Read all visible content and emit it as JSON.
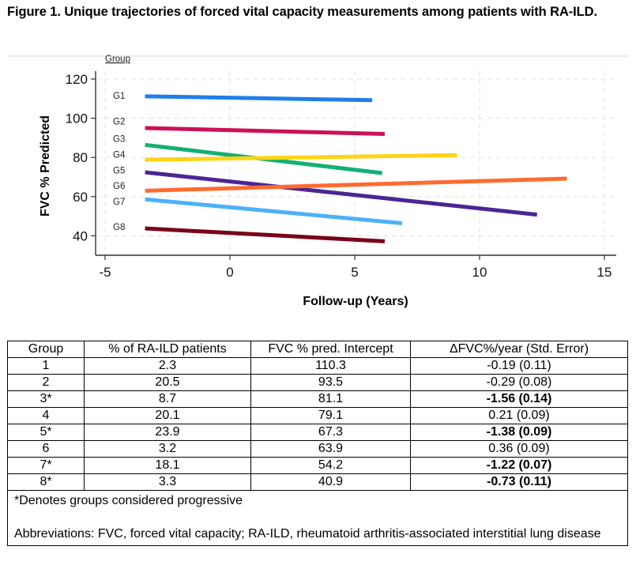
{
  "figure": {
    "title": "Figure 1. Unique trajectories of forced vital capacity measurements among patients with RA-ILD."
  },
  "chart_data": {
    "type": "line",
    "title": "",
    "xlabel": "Follow-up (Years)",
    "ylabel": "FVC % Predicted",
    "legend_title": "Group",
    "xlim": [
      -5.5,
      15.3
    ],
    "ylim": [
      30.5,
      123
    ],
    "xticks": [
      -5,
      0,
      5,
      10,
      15
    ],
    "yticks": [
      40,
      60,
      80,
      100,
      120
    ],
    "grid": true,
    "legend_placement": "inline-left",
    "series": [
      {
        "name": "G1",
        "color": "#1f7fe8",
        "x": [
          -3.4,
          5.7
        ],
        "y": [
          111.2,
          109.2
        ]
      },
      {
        "name": "G2",
        "color": "#cc1157",
        "x": [
          -3.4,
          6.2
        ],
        "y": [
          95.0,
          92.0
        ]
      },
      {
        "name": "G3",
        "color": "#13b073",
        "x": [
          -3.4,
          6.1
        ],
        "y": [
          86.4,
          72.0
        ]
      },
      {
        "name": "G4",
        "color": "#ffd316",
        "x": [
          -3.4,
          9.1
        ],
        "y": [
          78.8,
          81.2
        ]
      },
      {
        "name": "G5",
        "color": "#4b2594",
        "x": [
          -3.4,
          12.3
        ],
        "y": [
          72.4,
          50.8
        ]
      },
      {
        "name": "G6",
        "color": "#ff6a2f",
        "x": [
          -3.4,
          13.5
        ],
        "y": [
          63.0,
          69.2
        ]
      },
      {
        "name": "G7",
        "color": "#4cb1f7",
        "x": [
          -3.4,
          6.9
        ],
        "y": [
          58.6,
          46.4
        ]
      },
      {
        "name": "G8",
        "color": "#7a0018",
        "x": [
          -3.4,
          6.2
        ],
        "y": [
          43.8,
          37.2
        ]
      }
    ],
    "label_positions_y": [
      111.5,
      98.5,
      89.5,
      81.5,
      73.5,
      65.5,
      57.5,
      44.5
    ]
  },
  "table": {
    "headers": [
      "Group",
      "% of RA-ILD patients",
      "FVC % pred. Intercept",
      "ΔFVC%/year (Std. Error)"
    ],
    "rows": [
      {
        "group": "1",
        "pct": "2.3",
        "intercept": "110.3",
        "slope": "-0.19 (0.11)",
        "bold": false
      },
      {
        "group": "2",
        "pct": "20.5",
        "intercept": "93.5",
        "slope": "-0.29 (0.08)",
        "bold": false
      },
      {
        "group": "3*",
        "pct": "8.7",
        "intercept": "81.1",
        "slope": "-1.56 (0.14)",
        "bold": true
      },
      {
        "group": "4",
        "pct": "20.1",
        "intercept": "79.1",
        "slope": "0.21 (0.09)",
        "bold": false
      },
      {
        "group": "5*",
        "pct": "23.9",
        "intercept": "67.3",
        "slope": "-1.38 (0.09)",
        "bold": true
      },
      {
        "group": "6",
        "pct": "3.2",
        "intercept": "63.9",
        "slope": "0.36 (0.09)",
        "bold": false
      },
      {
        "group": "7*",
        "pct": "18.1",
        "intercept": "54.2",
        "slope": "-1.22 (0.07)",
        "bold": true
      },
      {
        "group": "8*",
        "pct": "3.3",
        "intercept": "40.9",
        "slope": "-0.73 (0.11)",
        "bold": true
      }
    ],
    "footnote": "*Denotes groups considered progressive",
    "abbreviations": "Abbreviations: FVC, forced vital capacity; RA-ILD, rheumatoid arthritis-associated interstitial lung disease"
  }
}
